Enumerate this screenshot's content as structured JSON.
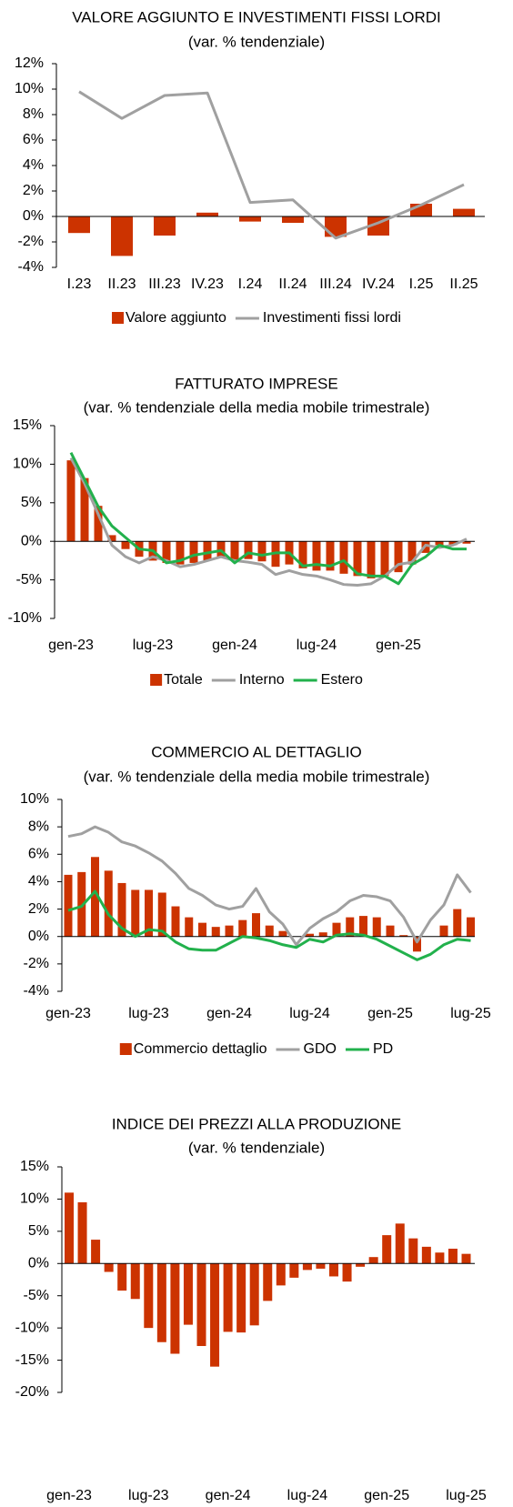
{
  "chart_data": [
    {
      "type": "combo",
      "title": "VALORE AGGIUNTO E INVESTIMENTI FISSI LORDI",
      "subtitle": "(var. % tendenziale)",
      "categories": [
        "I.23",
        "II.23",
        "III.23",
        "IV.23",
        "I.24",
        "II.24",
        "III.24",
        "IV.24",
        "I.25",
        "II.25"
      ],
      "series": [
        {
          "name": "Valore aggiunto",
          "kind": "bar",
          "color": "#cc3300",
          "values": [
            -1.3,
            -3.1,
            -1.5,
            0.3,
            -0.4,
            -0.5,
            -1.6,
            -1.5,
            1.0,
            0.6
          ]
        },
        {
          "name": "Investimenti fissi lordi",
          "kind": "line",
          "color": "#a0a0a0",
          "values": [
            9.8,
            7.7,
            9.5,
            9.7,
            1.1,
            1.3,
            -1.7,
            -0.5,
            0.9,
            2.5
          ]
        }
      ],
      "ylim": [
        -4,
        12
      ],
      "yticks": [
        {
          "value": -4,
          "label": "-4%"
        },
        {
          "value": -2,
          "label": "-2%"
        },
        {
          "value": 0,
          "label": "0%"
        },
        {
          "value": 2,
          "label": "2%"
        },
        {
          "value": 4,
          "label": "4%"
        },
        {
          "value": 6,
          "label": "6%"
        },
        {
          "value": 8,
          "label": "8%"
        },
        {
          "value": 10,
          "label": "10%"
        },
        {
          "value": 12,
          "label": "12%"
        }
      ],
      "legend": "bottom"
    },
    {
      "type": "combo",
      "title": "FATTURATO IMPRESE",
      "subtitle": "(var. % tendenziale della media mobile trimestrale)",
      "categories": [
        "gen-23",
        null,
        null,
        null,
        null,
        null,
        "lug-23",
        null,
        null,
        null,
        null,
        null,
        "gen-24",
        null,
        null,
        null,
        null,
        null,
        "lug-24",
        null,
        null,
        null,
        null,
        null,
        "gen-25",
        null,
        null,
        null,
        null,
        null
      ],
      "series": [
        {
          "name": "Totale",
          "kind": "bar",
          "color": "#cc3300",
          "values": [
            10.5,
            8.2,
            4.6,
            0.8,
            -1.0,
            -2.0,
            -2.5,
            -2.8,
            -3.0,
            -2.8,
            -2.5,
            -2.0,
            -2.5,
            -2.3,
            -2.6,
            -3.3,
            -3.0,
            -3.5,
            -3.8,
            -3.8,
            -4.2,
            -4.5,
            -4.8,
            -4.5,
            -4.0,
            -3.0,
            -1.5,
            -0.5,
            -0.5,
            -0.3
          ]
        },
        {
          "name": "Interno",
          "kind": "line",
          "color": "#a0a0a0",
          "values": [
            10.8,
            7.5,
            3.5,
            -0.5,
            -2.0,
            -2.8,
            -2.0,
            -2.5,
            -3.3,
            -3.0,
            -2.5,
            -2.0,
            -2.5,
            -2.7,
            -3.0,
            -4.3,
            -3.8,
            -4.3,
            -4.5,
            -5.0,
            -5.6,
            -5.7,
            -5.5,
            -4.5,
            -3.0,
            -2.7,
            -0.5,
            -0.8,
            -0.5,
            0.3
          ]
        },
        {
          "name": "Estero",
          "kind": "line",
          "color": "#22b14c",
          "values": [
            11.5,
            8.0,
            4.5,
            2.0,
            0.5,
            -1.0,
            -1.2,
            -2.8,
            -2.5,
            -1.8,
            -1.5,
            -1.2,
            -2.8,
            -1.5,
            -1.8,
            -1.5,
            -1.5,
            -3.2,
            -3.0,
            -3.2,
            -2.5,
            -4.2,
            -4.5,
            -4.5,
            -5.5,
            -3.0,
            -2.0,
            -0.5,
            -1.0,
            -1.0
          ]
        }
      ],
      "ylim": [
        -10,
        15
      ],
      "yticks": [
        {
          "value": -10,
          "label": "-10%"
        },
        {
          "value": -5,
          "label": "-5%"
        },
        {
          "value": 0,
          "label": "0%"
        },
        {
          "value": 5,
          "label": "5%"
        },
        {
          "value": 10,
          "label": "10%"
        },
        {
          "value": 15,
          "label": "15%"
        }
      ],
      "legend": "bottom"
    },
    {
      "type": "combo",
      "title": "COMMERCIO AL DETTAGLIO",
      "subtitle": "(var. % tendenziale della media mobile trimestrale)",
      "categories": [
        "gen-23",
        null,
        null,
        null,
        null,
        null,
        "lug-23",
        null,
        null,
        null,
        null,
        null,
        "gen-24",
        null,
        null,
        null,
        null,
        null,
        "lug-24",
        null,
        null,
        null,
        null,
        null,
        "gen-25",
        null,
        null,
        null,
        null,
        null,
        "lug-25"
      ],
      "series": [
        {
          "name": "Commercio dettaglio",
          "kind": "bar",
          "color": "#cc3300",
          "values": [
            4.5,
            4.7,
            5.8,
            4.8,
            3.9,
            3.4,
            3.4,
            3.2,
            2.2,
            1.4,
            1.0,
            0.7,
            0.8,
            1.2,
            1.7,
            0.8,
            0.4,
            0.0,
            0.2,
            0.3,
            1.0,
            1.4,
            1.5,
            1.4,
            0.8,
            0.1,
            -1.1,
            0.0,
            0.8,
            2.0,
            1.4
          ]
        },
        {
          "name": "GDO",
          "kind": "line",
          "color": "#a0a0a0",
          "values": [
            7.3,
            7.5,
            8.0,
            7.6,
            6.9,
            6.6,
            6.1,
            5.5,
            4.6,
            3.5,
            3.0,
            2.3,
            2.0,
            2.2,
            3.5,
            1.8,
            0.9,
            -0.6,
            0.6,
            1.3,
            1.8,
            2.6,
            3.0,
            2.9,
            2.6,
            1.4,
            -0.4,
            1.2,
            2.3,
            4.5,
            3.2
          ]
        },
        {
          "name": "PD",
          "kind": "line",
          "color": "#22b14c",
          "values": [
            1.9,
            2.2,
            3.3,
            1.6,
            0.6,
            0.0,
            0.5,
            0.4,
            -0.4,
            -0.9,
            -1.0,
            -1.0,
            -0.5,
            0.0,
            -0.1,
            -0.3,
            -0.6,
            -0.8,
            -0.2,
            -0.4,
            0.1,
            0.2,
            0.1,
            -0.2,
            -0.7,
            -1.2,
            -1.7,
            -1.3,
            -0.6,
            -0.2,
            -0.3
          ]
        }
      ],
      "ylim": [
        -4,
        10
      ],
      "yticks": [
        {
          "value": -4,
          "label": "-4%"
        },
        {
          "value": -2,
          "label": "-2%"
        },
        {
          "value": 0,
          "label": "0%"
        },
        {
          "value": 2,
          "label": "2%"
        },
        {
          "value": 4,
          "label": "4%"
        },
        {
          "value": 6,
          "label": "6%"
        },
        {
          "value": 8,
          "label": "8%"
        },
        {
          "value": 10,
          "label": "10%"
        }
      ],
      "legend": "bottom"
    },
    {
      "type": "bar",
      "title": "INDICE DEI PREZZI ALLA PRODUZIONE",
      "subtitle": "(var. % tendenziale)",
      "categories": [
        "gen-23",
        null,
        null,
        null,
        null,
        null,
        "lug-23",
        null,
        null,
        null,
        null,
        null,
        "gen-24",
        null,
        null,
        null,
        null,
        null,
        "lug-24",
        null,
        null,
        null,
        null,
        null,
        "gen-25",
        null,
        null,
        null,
        null,
        null,
        "lug-25"
      ],
      "color": "#cc3300",
      "values": [
        11.0,
        9.5,
        3.7,
        -1.3,
        -4.2,
        -5.5,
        -10.0,
        -12.2,
        -14.0,
        -9.5,
        -12.8,
        -16.0,
        -10.6,
        -10.7,
        -9.6,
        -5.8,
        -3.4,
        -2.2,
        -1.0,
        -0.8,
        -2.0,
        -2.8,
        -0.5,
        1.0,
        4.4,
        6.2,
        3.9,
        2.6,
        1.7,
        2.3,
        1.5
      ],
      "ylim": [
        -20,
        15
      ],
      "yticks": [
        {
          "value": -20,
          "label": "-20%"
        },
        {
          "value": -15,
          "label": "-15%"
        },
        {
          "value": -10,
          "label": "-10%"
        },
        {
          "value": -5,
          "label": "-5%"
        },
        {
          "value": 0,
          "label": "0%"
        },
        {
          "value": 5,
          "label": "5%"
        },
        {
          "value": 10,
          "label": "10%"
        },
        {
          "value": 15,
          "label": "15%"
        }
      ]
    }
  ]
}
